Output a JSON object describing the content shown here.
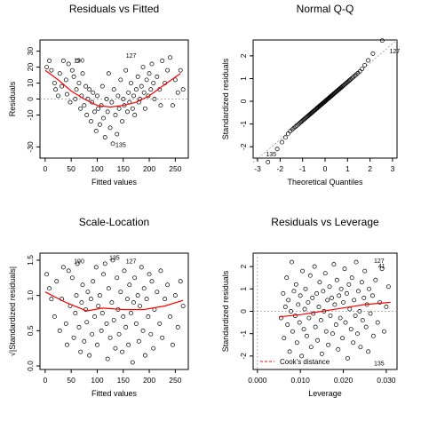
{
  "chart_data": [
    {
      "type": "scatter",
      "title": "Residuals vs Fitted",
      "xlabel": "Fitted values",
      "ylabel": "Residuals",
      "xlim": [
        -10,
        275
      ],
      "ylim": [
        -37,
        37
      ],
      "xticks": [
        "0",
        "50",
        "100",
        "150",
        "200",
        "250"
      ],
      "xtick_values": [
        0,
        50,
        100,
        150,
        200,
        250
      ],
      "yticks": [
        "-30",
        "-10",
        "0",
        "10",
        "20",
        "30"
      ],
      "ytick_values": [
        -30,
        -10,
        0,
        10,
        20,
        30
      ],
      "reference_line_y": 0,
      "smooth_line": {
        "color": "#ff0000",
        "points": [
          [
            0,
            18
          ],
          [
            25,
            12
          ],
          [
            50,
            5
          ],
          [
            75,
            0
          ],
          [
            100,
            -4
          ],
          [
            125,
            -5
          ],
          [
            150,
            -4
          ],
          [
            175,
            -2
          ],
          [
            200,
            2
          ],
          [
            225,
            8
          ],
          [
            260,
            16
          ]
        ]
      },
      "annotations": [
        {
          "label": "190",
          "x": 50,
          "y": 24
        },
        {
          "label": "127",
          "x": 150,
          "y": 27
        },
        {
          "label": "135",
          "x": 130,
          "y": -29
        }
      ],
      "points": [
        [
          3,
          20
        ],
        [
          8,
          24
        ],
        [
          12,
          18
        ],
        [
          18,
          10
        ],
        [
          20,
          6
        ],
        [
          25,
          2
        ],
        [
          28,
          16
        ],
        [
          32,
          8
        ],
        [
          35,
          24
        ],
        [
          40,
          12
        ],
        [
          42,
          3
        ],
        [
          45,
          22
        ],
        [
          48,
          -2
        ],
        [
          52,
          18
        ],
        [
          55,
          14
        ],
        [
          58,
          0
        ],
        [
          60,
          6
        ],
        [
          62,
          24
        ],
        [
          65,
          10
        ],
        [
          68,
          -6
        ],
        [
          70,
          2
        ],
        [
          72,
          16
        ],
        [
          75,
          -4
        ],
        [
          78,
          8
        ],
        [
          80,
          -10
        ],
        [
          82,
          0
        ],
        [
          85,
          6
        ],
        [
          88,
          -14
        ],
        [
          90,
          -2
        ],
        [
          92,
          4
        ],
        [
          95,
          -8
        ],
        [
          98,
          -20
        ],
        [
          100,
          2
        ],
        [
          102,
          -6
        ],
        [
          105,
          -16
        ],
        [
          108,
          -4
        ],
        [
          110,
          8
        ],
        [
          112,
          -12
        ],
        [
          115,
          -24
        ],
        [
          118,
          0
        ],
        [
          120,
          -8
        ],
        [
          122,
          16
        ],
        [
          125,
          -18
        ],
        [
          128,
          -2
        ],
        [
          130,
          -28
        ],
        [
          132,
          6
        ],
        [
          135,
          -10
        ],
        [
          138,
          -22
        ],
        [
          140,
          2
        ],
        [
          142,
          -6
        ],
        [
          145,
          12
        ],
        [
          148,
          -14
        ],
        [
          150,
          0
        ],
        [
          152,
          -4
        ],
        [
          155,
          18
        ],
        [
          158,
          -8
        ],
        [
          160,
          4
        ],
        [
          162,
          -2
        ],
        [
          165,
          10
        ],
        [
          168,
          -6
        ],
        [
          170,
          2
        ],
        [
          172,
          -10
        ],
        [
          175,
          6
        ],
        [
          178,
          14
        ],
        [
          180,
          -2
        ],
        [
          182,
          0
        ],
        [
          185,
          8
        ],
        [
          188,
          20
        ],
        [
          190,
          4
        ],
        [
          192,
          -6
        ],
        [
          195,
          12
        ],
        [
          198,
          2
        ],
        [
          200,
          16
        ],
        [
          203,
          6
        ],
        [
          205,
          22
        ],
        [
          208,
          10
        ],
        [
          210,
          0
        ],
        [
          215,
          14
        ],
        [
          220,
          6
        ],
        [
          222,
          -4
        ],
        [
          225,
          24
        ],
        [
          230,
          10
        ],
        [
          235,
          18
        ],
        [
          240,
          26
        ],
        [
          245,
          -4
        ],
        [
          250,
          12
        ],
        [
          255,
          4
        ],
        [
          260,
          18
        ],
        [
          265,
          6
        ]
      ]
    },
    {
      "type": "scatter",
      "title": "Normal Q-Q",
      "xlabel": "Theoretical Quantiles",
      "ylabel": "Standardized residuals",
      "xlim": [
        -3.2,
        3.2
      ],
      "ylim": [
        -2.5,
        2.7
      ],
      "xticks": [
        "-3",
        "-2",
        "-1",
        "0",
        "1",
        "2",
        "3"
      ],
      "xtick_values": [
        -3,
        -2,
        -1,
        0,
        1,
        2,
        3
      ],
      "yticks": [
        "-2",
        "-1",
        "0",
        "1",
        "2"
      ],
      "ytick_values": [
        -2,
        -1,
        0,
        1,
        2
      ],
      "reference_line": [
        [
          -3.2,
          -2.7
        ],
        [
          3.2,
          2.7
        ]
      ],
      "annotations": [
        {
          "label": "135",
          "x": -2.75,
          "y": -2.35
        },
        {
          "label": "127",
          "x": 2.75,
          "y": 2.2
        }
      ],
      "quantile_range": [
        -2.75,
        2.75
      ]
    },
    {
      "type": "scatter",
      "title": "Scale-Location",
      "xlabel": "Fitted values",
      "ylabel": "√|Standardized residuals|",
      "xlim": [
        -10,
        275
      ],
      "ylim": [
        -0.05,
        1.6
      ],
      "xticks": [
        "0",
        "50",
        "100",
        "150",
        "200",
        "250"
      ],
      "xtick_values": [
        0,
        50,
        100,
        150,
        200,
        250
      ],
      "yticks": [
        "0.0",
        "0.5",
        "1.0",
        "1.5"
      ],
      "ytick_values": [
        0,
        0.5,
        1.0,
        1.5
      ],
      "smooth_line": {
        "color": "#ff0000",
        "points": [
          [
            0,
            1.05
          ],
          [
            40,
            0.9
          ],
          [
            80,
            0.78
          ],
          [
            110,
            0.82
          ],
          [
            150,
            0.8
          ],
          [
            190,
            0.8
          ],
          [
            230,
            0.85
          ],
          [
            265,
            0.93
          ]
        ]
      },
      "annotations": [
        {
          "label": "190",
          "x": 50,
          "y": 1.48
        },
        {
          "label": "135",
          "x": 118,
          "y": 1.53
        },
        {
          "label": "127",
          "x": 150,
          "y": 1.48
        }
      ],
      "points": [
        [
          3,
          1.3
        ],
        [
          8,
          1.1
        ],
        [
          12,
          0.95
        ],
        [
          18,
          0.7
        ],
        [
          22,
          1.2
        ],
        [
          28,
          0.5
        ],
        [
          32,
          0.95
        ],
        [
          35,
          1.4
        ],
        [
          40,
          0.6
        ],
        [
          42,
          0.3
        ],
        [
          45,
          1.35
        ],
        [
          48,
          0.85
        ],
        [
          52,
          1.25
        ],
        [
          55,
          0.4
        ],
        [
          58,
          0.75
        ],
        [
          60,
          1.0
        ],
        [
          62,
          1.45
        ],
        [
          65,
          0.55
        ],
        [
          68,
          0.2
        ],
        [
          70,
          0.9
        ],
        [
          72,
          1.15
        ],
        [
          75,
          0.35
        ],
        [
          78,
          0.8
        ],
        [
          80,
          0.62
        ],
        [
          82,
          1.05
        ],
        [
          85,
          0.15
        ],
        [
          88,
          0.95
        ],
        [
          90,
          0.45
        ],
        [
          92,
          1.2
        ],
        [
          95,
          0.7
        ],
        [
          98,
          1.4
        ],
        [
          100,
          0.3
        ],
        [
          102,
          0.85
        ],
        [
          105,
          1.0
        ],
        [
          108,
          0.5
        ],
        [
          110,
          0.75
        ],
        [
          112,
          1.3
        ],
        [
          115,
          1.45
        ],
        [
          118,
          0.6
        ],
        [
          120,
          0.1
        ],
        [
          122,
          1.1
        ],
        [
          125,
          0.4
        ],
        [
          128,
          0.9
        ],
        [
          130,
          1.5
        ],
        [
          132,
          0.65
        ],
        [
          135,
          0.25
        ],
        [
          138,
          1.25
        ],
        [
          140,
          0.8
        ],
        [
          142,
          0.45
        ],
        [
          145,
          1.05
        ],
        [
          148,
          0.2
        ],
        [
          150,
          0.7
        ],
        [
          152,
          1.35
        ],
        [
          155,
          0.55
        ],
        [
          158,
          0.95
        ],
        [
          160,
          0.3
        ],
        [
          162,
          1.15
        ],
        [
          165,
          0.75
        ],
        [
          168,
          0.05
        ],
        [
          170,
          0.9
        ],
        [
          172,
          1.25
        ],
        [
          175,
          0.6
        ],
        [
          178,
          1.0
        ],
        [
          180,
          0.35
        ],
        [
          182,
          0.85
        ],
        [
          185,
          1.4
        ],
        [
          188,
          0.5
        ],
        [
          190,
          1.1
        ],
        [
          192,
          0.15
        ],
        [
          195,
          0.95
        ],
        [
          198,
          0.7
        ],
        [
          200,
          1.3
        ],
        [
          203,
          0.45
        ],
        [
          205,
          1.2
        ],
        [
          208,
          0.25
        ],
        [
          210,
          0.8
        ],
        [
          215,
          1.05
        ],
        [
          220,
          0.6
        ],
        [
          222,
          1.35
        ],
        [
          225,
          0.4
        ],
        [
          230,
          0.95
        ],
        [
          235,
          1.15
        ],
        [
          240,
          0.7
        ],
        [
          245,
          0.3
        ],
        [
          250,
          1.0
        ],
        [
          255,
          0.55
        ],
        [
          260,
          1.2
        ],
        [
          265,
          0.85
        ]
      ]
    },
    {
      "type": "scatter",
      "title": "Residuals vs Leverage",
      "xlabel": "Leverage",
      "ylabel": "Standardized residuals",
      "xlim": [
        -0.001,
        0.0325
      ],
      "ylim": [
        -2.6,
        2.6
      ],
      "xticks": [
        "0.000",
        "0.010",
        "0.020",
        "0.030"
      ],
      "xtick_values": [
        0,
        0.01,
        0.02,
        0.03
      ],
      "yticks": [
        "-2",
        "-1",
        "0",
        "1",
        "2"
      ],
      "ytick_values": [
        -2,
        -1,
        0,
        1,
        2
      ],
      "reference_line_y": 0,
      "reference_line_x": 0,
      "smooth_line": {
        "color": "#ff0000",
        "points": [
          [
            0.005,
            -0.25
          ],
          [
            0.01,
            -0.15
          ],
          [
            0.015,
            0.0
          ],
          [
            0.02,
            0.15
          ],
          [
            0.025,
            0.3
          ],
          [
            0.031,
            0.4
          ]
        ]
      },
      "annotations": [
        {
          "label": "127",
          "x": 0.0265,
          "y": 2.25
        },
        {
          "label": "41",
          "x": 0.0275,
          "y": 2.0
        },
        {
          "label": "135",
          "x": 0.0265,
          "y": -2.35
        }
      ],
      "legend": {
        "label": "Cook's distance",
        "position": "bottom-left",
        "color": "#ff0000",
        "dashed": true
      },
      "points": [
        [
          0.0055,
          -0.3
        ],
        [
          0.006,
          0.8
        ],
        [
          0.0062,
          -1.2
        ],
        [
          0.0065,
          0.2
        ],
        [
          0.0068,
          1.5
        ],
        [
          0.007,
          -0.6
        ],
        [
          0.0072,
          0.5
        ],
        [
          0.0075,
          -1.8
        ],
        [
          0.0078,
          0.0
        ],
        [
          0.008,
          2.2
        ],
        [
          0.0082,
          -0.9
        ],
        [
          0.0085,
          0.9
        ],
        [
          0.0088,
          -0.2
        ],
        [
          0.009,
          1.2
        ],
        [
          0.0092,
          -1.4
        ],
        [
          0.0095,
          0.3
        ],
        [
          0.0098,
          -0.5
        ],
        [
          0.01,
          0.7
        ],
        [
          0.0103,
          -2.0
        ],
        [
          0.0105,
          1.8
        ],
        [
          0.0108,
          -0.8
        ],
        [
          0.011,
          0.1
        ],
        [
          0.0112,
          1.0
        ],
        [
          0.0115,
          -1.1
        ],
        [
          0.0118,
          0.4
        ],
        [
          0.012,
          -0.3
        ],
        [
          0.0123,
          1.6
        ],
        [
          0.0125,
          -1.6
        ],
        [
          0.0128,
          0.6
        ],
        [
          0.013,
          -0.1
        ],
        [
          0.0133,
          2.0
        ],
        [
          0.0135,
          -0.7
        ],
        [
          0.0138,
          0.8
        ],
        [
          0.014,
          -1.3
        ],
        [
          0.0143,
          0.2
        ],
        [
          0.0145,
          1.3
        ],
        [
          0.0148,
          -0.4
        ],
        [
          0.015,
          -1.9
        ],
        [
          0.0153,
          0.9
        ],
        [
          0.0155,
          0.0
        ],
        [
          0.0158,
          1.7
        ],
        [
          0.016,
          -0.9
        ],
        [
          0.0163,
          0.5
        ],
        [
          0.0165,
          -1.5
        ],
        [
          0.0168,
          1.1
        ],
        [
          0.017,
          -0.2
        ],
        [
          0.0173,
          0.6
        ],
        [
          0.0175,
          -1.0
        ],
        [
          0.0178,
          2.1
        ],
        [
          0.018,
          0.3
        ],
        [
          0.0183,
          -0.6
        ],
        [
          0.0185,
          1.4
        ],
        [
          0.0188,
          -1.7
        ],
        [
          0.019,
          0.7
        ],
        [
          0.0193,
          -0.3
        ],
        [
          0.0195,
          1.0
        ],
        [
          0.0198,
          -1.2
        ],
        [
          0.02,
          0.4
        ],
        [
          0.0203,
          1.9
        ],
        [
          0.0205,
          -0.5
        ],
        [
          0.0208,
          0.8
        ],
        [
          0.021,
          -2.1
        ],
        [
          0.0213,
          1.2
        ],
        [
          0.0215,
          0.1
        ],
        [
          0.0218,
          -0.8
        ],
        [
          0.022,
          1.5
        ],
        [
          0.0223,
          -1.4
        ],
        [
          0.0225,
          0.5
        ],
        [
          0.0228,
          -0.2
        ],
        [
          0.023,
          2.2
        ],
        [
          0.0233,
          -1.0
        ],
        [
          0.0235,
          0.9
        ],
        [
          0.0238,
          0.0
        ],
        [
          0.024,
          -1.6
        ],
        [
          0.0243,
          1.3
        ],
        [
          0.0245,
          -0.4
        ],
        [
          0.0248,
          0.6
        ],
        [
          0.025,
          1.8
        ],
        [
          0.0253,
          -0.7
        ],
        [
          0.0255,
          0.3
        ],
        [
          0.0258,
          -1.8
        ],
        [
          0.026,
          1.0
        ],
        [
          0.0263,
          -0.1
        ],
        [
          0.0268,
          0.7
        ],
        [
          0.027,
          -1.1
        ],
        [
          0.0275,
          1.4
        ],
        [
          0.028,
          -0.5
        ],
        [
          0.0285,
          0.4
        ],
        [
          0.029,
          1.9
        ],
        [
          0.0295,
          -0.9
        ],
        [
          0.03,
          0.2
        ],
        [
          0.0305,
          1.1
        ]
      ]
    }
  ]
}
